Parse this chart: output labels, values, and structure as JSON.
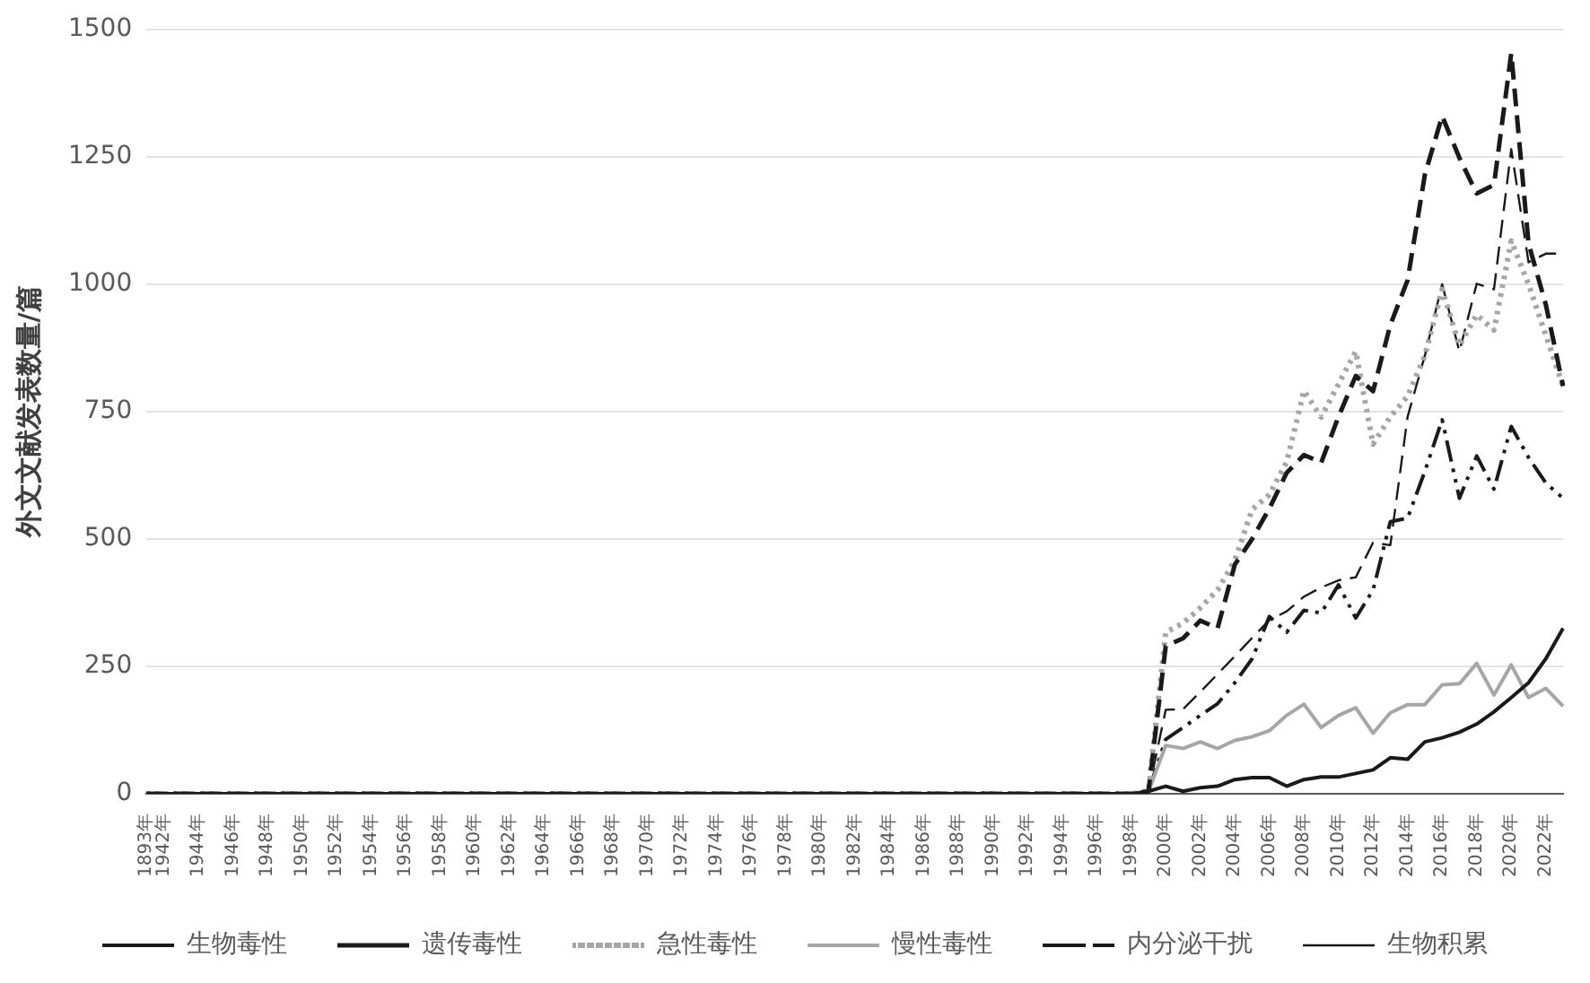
{
  "chart_data": {
    "type": "line",
    "ylabel": "外文文献发表数量/篇",
    "categories": [
      "1893年",
      "1942年",
      null,
      "1944年",
      null,
      "1946年",
      null,
      "1948年",
      null,
      "1950年",
      null,
      "1952年",
      null,
      "1954年",
      null,
      "1956年",
      null,
      "1958年",
      null,
      "1960年",
      null,
      "1962年",
      null,
      "1964年",
      null,
      "1966年",
      null,
      "1968年",
      null,
      "1970年",
      null,
      "1972年",
      null,
      "1974年",
      null,
      "1976年",
      null,
      "1978年",
      null,
      "1980年",
      null,
      "1982年",
      null,
      "1984年",
      null,
      "1986年",
      null,
      "1988年",
      null,
      "1990年",
      null,
      "1992年",
      null,
      "1994年",
      null,
      "1996年",
      null,
      "1998年",
      null,
      "2000年",
      null,
      "2002年",
      null,
      "2004年",
      null,
      "2006年",
      null,
      "2008年",
      null,
      "2010年",
      null,
      "2012年",
      null,
      "2014年",
      null,
      "2016年",
      null,
      "2018年",
      null,
      "2020年",
      null,
      "2022年",
      null
    ],
    "series": [
      {
        "name": "生物毒性",
        "color": "#1a1a1a",
        "line_style": "solid",
        "values": [
          0,
          0,
          0,
          0,
          0,
          0,
          0,
          0,
          0,
          0,
          0,
          0,
          0,
          0,
          0,
          0,
          0,
          0,
          0,
          0,
          0,
          0,
          0,
          0,
          0,
          0,
          0,
          0,
          0,
          0,
          0,
          0,
          0,
          0,
          0,
          0,
          0,
          0,
          0,
          0,
          0,
          0,
          0,
          0,
          0,
          0,
          0,
          0,
          0,
          0,
          0,
          0,
          0,
          0,
          0,
          0,
          0,
          0,
          5,
          15,
          5,
          12,
          15,
          28,
          32,
          32,
          15,
          28,
          33,
          33,
          40,
          47,
          71,
          68,
          102,
          110,
          121,
          137,
          161,
          189,
          218,
          265,
          325
        ]
      },
      {
        "name": "遗传毒性",
        "color": "#1a1a1a",
        "line_style": "dashed",
        "values": [
          0,
          0,
          0,
          0,
          0,
          0,
          0,
          0,
          0,
          0,
          0,
          0,
          0,
          0,
          0,
          0,
          0,
          0,
          0,
          0,
          0,
          0,
          0,
          0,
          0,
          0,
          0,
          0,
          0,
          0,
          0,
          0,
          0,
          0,
          0,
          0,
          0,
          0,
          0,
          0,
          0,
          0,
          0,
          0,
          0,
          0,
          0,
          0,
          0,
          0,
          0,
          0,
          0,
          0,
          0,
          0,
          0,
          0,
          5,
          290,
          305,
          340,
          325,
          450,
          500,
          560,
          630,
          665,
          650,
          740,
          820,
          790,
          920,
          1008,
          1215,
          1330,
          1248,
          1178,
          1195,
          1453,
          1080,
          960,
          800
        ]
      },
      {
        "name": "急性毒性",
        "color": "#a6a6a6",
        "line_style": "dotted",
        "values": [
          0,
          0,
          0,
          0,
          0,
          0,
          0,
          0,
          0,
          0,
          0,
          0,
          0,
          0,
          0,
          0,
          0,
          0,
          0,
          0,
          0,
          0,
          0,
          0,
          0,
          0,
          0,
          0,
          0,
          0,
          0,
          0,
          0,
          0,
          0,
          0,
          0,
          0,
          0,
          0,
          0,
          0,
          0,
          0,
          0,
          0,
          0,
          0,
          0,
          0,
          0,
          0,
          0,
          0,
          0,
          0,
          0,
          0,
          5,
          317,
          335,
          365,
          400,
          458,
          558,
          587,
          651,
          791,
          739,
          804,
          868,
          686,
          740,
          780,
          860,
          990,
          880,
          940,
          910,
          1085,
          1000,
          900,
          800
        ]
      },
      {
        "name": "慢性毒性",
        "color": "#a6a6a6",
        "line_style": "solid",
        "values": [
          0,
          0,
          0,
          0,
          0,
          0,
          0,
          0,
          0,
          0,
          0,
          0,
          0,
          0,
          0,
          0,
          0,
          0,
          0,
          0,
          0,
          0,
          0,
          0,
          0,
          0,
          0,
          0,
          0,
          0,
          0,
          0,
          0,
          0,
          0,
          0,
          0,
          0,
          0,
          0,
          0,
          0,
          0,
          0,
          0,
          0,
          0,
          0,
          0,
          0,
          0,
          0,
          0,
          0,
          0,
          0,
          0,
          0,
          5,
          95,
          89,
          102,
          89,
          105,
          112,
          124,
          154,
          176,
          130,
          154,
          169,
          119,
          159,
          175,
          175,
          214,
          216,
          256,
          194,
          253,
          189,
          207,
          172
        ]
      },
      {
        "name": "内分泌干扰",
        "color": "#1a1a1a",
        "line_style": "dashdot",
        "values": [
          0,
          0,
          0,
          0,
          0,
          0,
          0,
          0,
          0,
          0,
          0,
          0,
          0,
          0,
          0,
          0,
          0,
          0,
          0,
          0,
          0,
          0,
          0,
          0,
          0,
          0,
          0,
          0,
          0,
          0,
          0,
          0,
          0,
          0,
          0,
          0,
          0,
          0,
          0,
          0,
          0,
          0,
          0,
          0,
          0,
          0,
          0,
          0,
          0,
          0,
          0,
          0,
          0,
          0,
          0,
          0,
          0,
          0,
          5,
          107,
          130,
          154,
          177,
          218,
          265,
          348,
          317,
          360,
          355,
          410,
          345,
          400,
          534,
          541,
          633,
          734,
          580,
          663,
          598,
          721,
          660,
          610,
          580
        ]
      },
      {
        "name": "生物积累",
        "color": "#1a1a1a",
        "line_style": "dashed",
        "values": [
          0,
          0,
          0,
          0,
          0,
          0,
          0,
          0,
          0,
          0,
          0,
          0,
          0,
          0,
          0,
          0,
          0,
          0,
          0,
          0,
          0,
          0,
          0,
          0,
          0,
          0,
          0,
          0,
          0,
          0,
          0,
          0,
          0,
          0,
          0,
          0,
          0,
          0,
          0,
          0,
          0,
          0,
          0,
          0,
          0,
          0,
          0,
          0,
          0,
          0,
          0,
          0,
          0,
          0,
          0,
          0,
          0,
          0,
          5,
          165,
          166,
          200,
          235,
          270,
          306,
          341,
          358,
          387,
          405,
          419,
          425,
          493,
          488,
          740,
          860,
          1000,
          868,
          1001,
          990,
          1265,
          1043,
          1060,
          1060
        ]
      }
    ],
    "ylim": [
      0,
      1500
    ],
    "yticks": [
      0,
      250,
      500,
      750,
      1000,
      1250,
      1500
    ],
    "grid": "y",
    "legend": "bottom",
    "marker": "none"
  }
}
